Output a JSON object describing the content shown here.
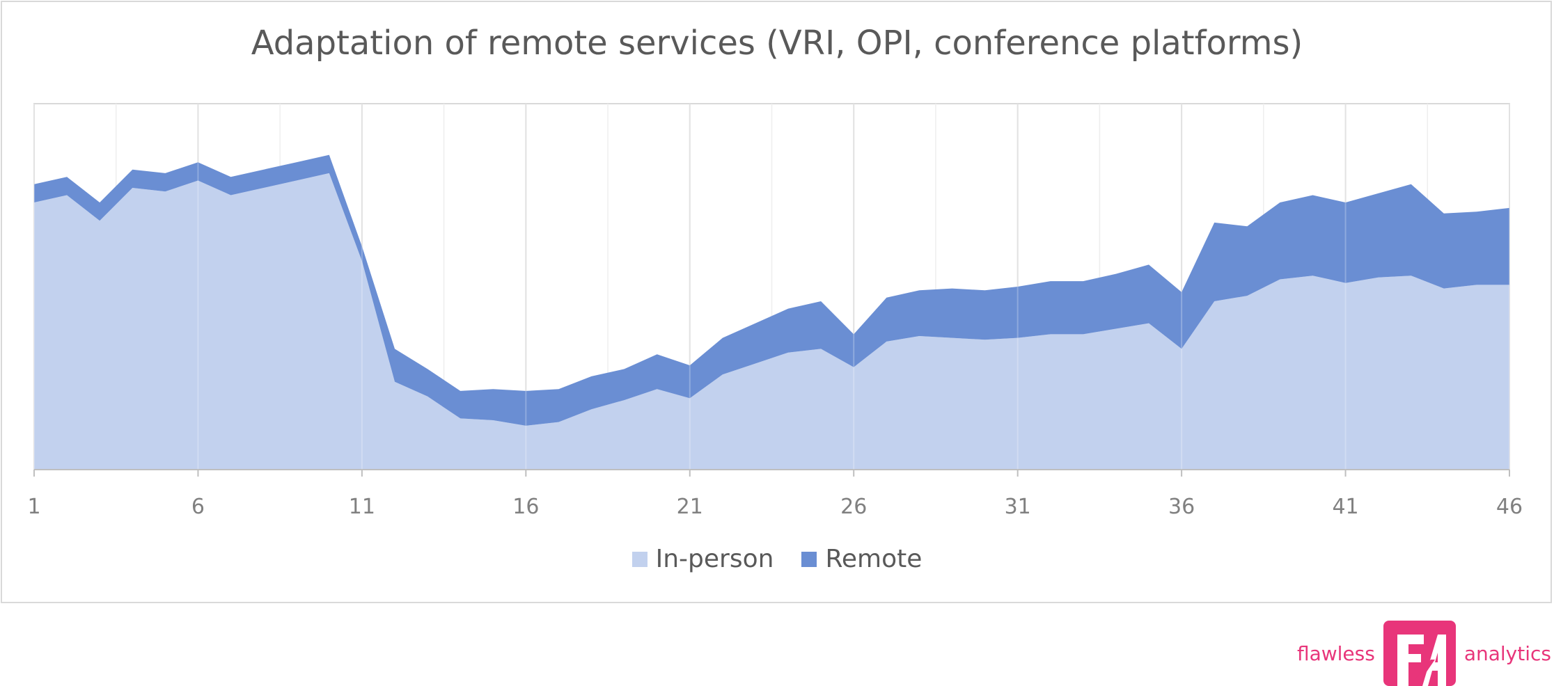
{
  "chart_data": {
    "type": "area",
    "stacked": true,
    "title": "Adaptation of remote services (VRI, OPI, conference platforms)",
    "x": [
      1,
      2,
      3,
      4,
      5,
      6,
      7,
      8,
      9,
      10,
      11,
      12,
      13,
      14,
      15,
      16,
      17,
      18,
      19,
      20,
      21,
      22,
      23,
      24,
      25,
      26,
      27,
      28,
      29,
      30,
      31,
      32,
      33,
      34,
      35,
      36,
      37,
      38,
      39,
      40,
      41,
      42,
      43,
      44,
      45,
      46
    ],
    "xticks": [
      "1",
      "6",
      "11",
      "16",
      "21",
      "26",
      "31",
      "36",
      "41",
      "46"
    ],
    "xlim": [
      1,
      46
    ],
    "ylim": [
      0,
      100
    ],
    "grid": true,
    "legend_position": "bottom",
    "series": [
      {
        "name": "In-person",
        "color": "#c2d1ee",
        "values": [
          73,
          75,
          68,
          77,
          76,
          79,
          75,
          77,
          79,
          81,
          57,
          24,
          20,
          14,
          13.5,
          12,
          13,
          16.5,
          19,
          22,
          19.5,
          26,
          29,
          32,
          33,
          28,
          35,
          36.5,
          36,
          35.5,
          36,
          37,
          37,
          38.5,
          40,
          33,
          46,
          47.5,
          52,
          53,
          51,
          52.5,
          53,
          49.5,
          50.5,
          50.5
        ]
      },
      {
        "name": "Remote",
        "color": "#6a8ed3",
        "values": [
          5,
          5,
          5,
          5,
          5,
          5,
          5,
          5,
          5,
          5,
          4,
          9,
          7.5,
          7.5,
          8.5,
          9.5,
          9,
          9,
          8.5,
          9.5,
          9,
          10,
          11,
          12,
          13,
          9,
          12,
          12.5,
          13.5,
          13.5,
          14,
          14.5,
          14.5,
          15,
          16,
          15.5,
          21.5,
          19,
          21,
          22,
          22,
          23,
          25,
          20.5,
          20,
          21
        ]
      }
    ]
  },
  "brand": {
    "left_text": "flawless",
    "right_text": "analytics",
    "color": "#e8357a"
  }
}
